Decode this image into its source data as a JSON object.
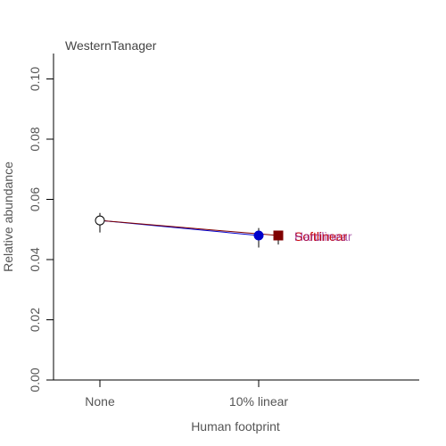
{
  "chart_data": {
    "type": "scatter",
    "title": "WesternTanager",
    "xlabel": "Human footprint",
    "ylabel": "Relative abundance",
    "categories": [
      "None",
      "10% linear"
    ],
    "ylim": [
      0,
      0.108
    ],
    "yticks": [
      "0.00",
      "0.02",
      "0.04",
      "0.06",
      "0.08",
      "0.10"
    ],
    "ytick_values": [
      0,
      0.02,
      0.04,
      0.06,
      0.08,
      0.1
    ],
    "baseline": {
      "value": 0.053,
      "lower": 0.049,
      "upper": 0.0555
    },
    "series": [
      {
        "name": "Softlinear",
        "value": 0.048,
        "lower": 0.044,
        "upper": 0.0505,
        "color": "#0000cc",
        "marker": "circle",
        "label_color": "#cc0000"
      },
      {
        "name": "Hardlinear",
        "value": 0.048,
        "lower": 0.045,
        "upper": 0.0495,
        "color": "#800000",
        "marker": "square",
        "label_color": "#8b1a8b"
      }
    ],
    "grid": false,
    "legend": "inline-right"
  }
}
